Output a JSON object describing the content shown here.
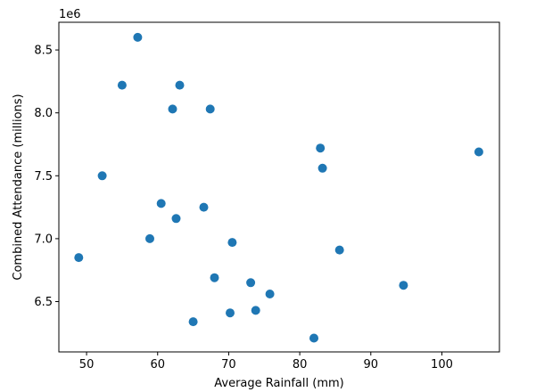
{
  "chart_data": {
    "type": "scatter",
    "xlabel": "Average Rainfall (mm)",
    "ylabel": "Combined Attendance (millions)",
    "y_offset_label": "1e6",
    "xlim": [
      46.1,
      108.1
    ],
    "ylim": [
      6100000,
      8720000
    ],
    "x_ticks": [
      50,
      60,
      70,
      80,
      90,
      100
    ],
    "y_ticks": [
      6500000,
      7000000,
      7500000,
      8000000,
      8500000
    ],
    "y_tick_labels": [
      "6.5",
      "7.0",
      "7.5",
      "8.0",
      "8.5"
    ],
    "point_color": "#1f77b4",
    "grid": false,
    "points": [
      {
        "x": 57.2,
        "y": 8600000
      },
      {
        "x": 55.0,
        "y": 8220000
      },
      {
        "x": 63.1,
        "y": 8220000
      },
      {
        "x": 62.1,
        "y": 8030000
      },
      {
        "x": 67.4,
        "y": 8030000
      },
      {
        "x": 82.9,
        "y": 7720000
      },
      {
        "x": 83.2,
        "y": 7560000
      },
      {
        "x": 105.2,
        "y": 7690000
      },
      {
        "x": 52.2,
        "y": 7500000
      },
      {
        "x": 60.5,
        "y": 7280000
      },
      {
        "x": 66.5,
        "y": 7250000
      },
      {
        "x": 62.6,
        "y": 7160000
      },
      {
        "x": 58.9,
        "y": 7000000
      },
      {
        "x": 70.5,
        "y": 6970000
      },
      {
        "x": 85.6,
        "y": 6910000
      },
      {
        "x": 48.9,
        "y": 6850000
      },
      {
        "x": 68.0,
        "y": 6690000
      },
      {
        "x": 73.1,
        "y": 6650000
      },
      {
        "x": 75.8,
        "y": 6560000
      },
      {
        "x": 94.6,
        "y": 6630000
      },
      {
        "x": 73.8,
        "y": 6430000
      },
      {
        "x": 70.2,
        "y": 6410000
      },
      {
        "x": 65.0,
        "y": 6340000
      },
      {
        "x": 82.0,
        "y": 6210000
      }
    ]
  }
}
